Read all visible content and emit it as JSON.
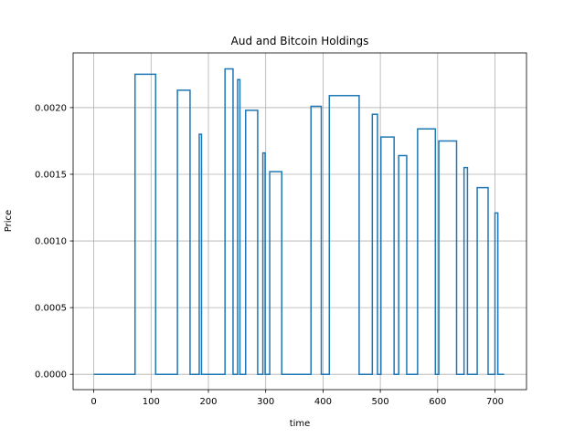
{
  "chart_data": {
    "type": "line",
    "title": "Aud and Bitcoin Holdings",
    "xlabel": "time",
    "ylabel": "Price",
    "xlim": [
      -36,
      755
    ],
    "ylim": [
      -0.000115,
      0.00241
    ],
    "xticks": [
      0,
      100,
      200,
      300,
      400,
      500,
      600,
      700
    ],
    "xtick_labels": [
      "0",
      "100",
      "200",
      "300",
      "400",
      "500",
      "600",
      "700"
    ],
    "yticks": [
      0,
      0.0005,
      0.001,
      0.0015,
      0.002
    ],
    "ytick_labels": [
      "0.0000",
      "0.0005",
      "0.0010",
      "0.0015",
      "0.0020"
    ],
    "grid": true,
    "line_color": "#1f77b4",
    "step_segments": [
      {
        "x_start": 72,
        "x_end": 108,
        "value": 0.00225
      },
      {
        "x_start": 146,
        "x_end": 168,
        "value": 0.00213
      },
      {
        "x_start": 184,
        "x_end": 188,
        "value": 0.0018
      },
      {
        "x_start": 229,
        "x_end": 243,
        "value": 0.00229
      },
      {
        "x_start": 251,
        "x_end": 255,
        "value": 0.00221
      },
      {
        "x_start": 265,
        "x_end": 286,
        "value": 0.00198
      },
      {
        "x_start": 295,
        "x_end": 299,
        "value": 0.00166
      },
      {
        "x_start": 307,
        "x_end": 328,
        "value": 0.00152
      },
      {
        "x_start": 379,
        "x_end": 397,
        "value": 0.00201
      },
      {
        "x_start": 411,
        "x_end": 463,
        "value": 0.00209
      },
      {
        "x_start": 486,
        "x_end": 495,
        "value": 0.00195
      },
      {
        "x_start": 501,
        "x_end": 524,
        "value": 0.00178
      },
      {
        "x_start": 532,
        "x_end": 546,
        "value": 0.00164
      },
      {
        "x_start": 565,
        "x_end": 596,
        "value": 0.00184
      },
      {
        "x_start": 602,
        "x_end": 633,
        "value": 0.00175
      },
      {
        "x_start": 646,
        "x_end": 652,
        "value": 0.00155
      },
      {
        "x_start": 669,
        "x_end": 688,
        "value": 0.0014
      },
      {
        "x_start": 700,
        "x_end": 705,
        "value": 0.00121
      }
    ],
    "x_range": [
      0,
      716
    ],
    "baseline_value": 0
  }
}
